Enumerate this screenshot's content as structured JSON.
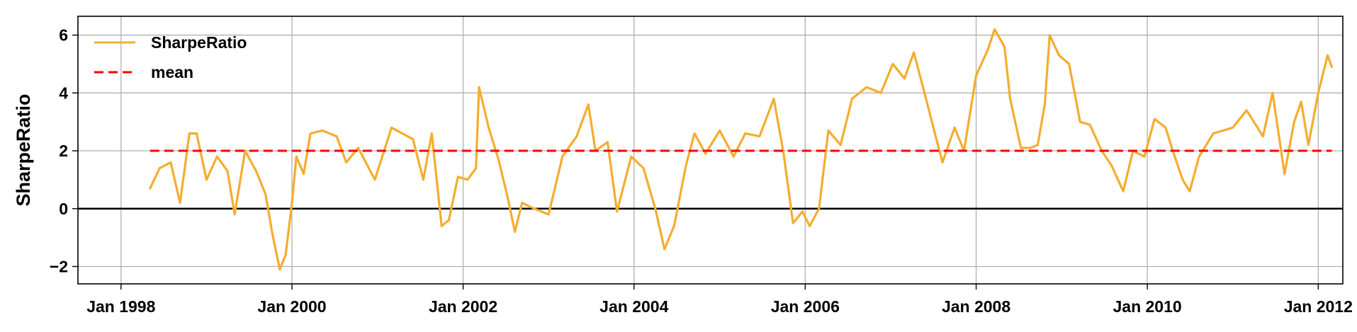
{
  "chart_data": {
    "type": "line",
    "title": "",
    "xlabel": "",
    "ylabel": "SharpeRatio",
    "grid": true,
    "legend_position": "top-left",
    "xlim": [
      "1997-07-01",
      "2012-04-15"
    ],
    "ylim": [
      -2.6,
      6.65
    ],
    "x_ticks": [
      "1998-01-01",
      "2000-01-01",
      "2002-01-01",
      "2004-01-01",
      "2006-01-01",
      "2008-01-01",
      "2010-01-01",
      "2012-01-01"
    ],
    "x_tick_labels": [
      "Jan 1998",
      "Jan 2000",
      "Jan 2002",
      "Jan 2004",
      "Jan 2006",
      "Jan 2008",
      "Jan 2010",
      "Jan 2012"
    ],
    "y_ticks": [
      -2,
      0,
      2,
      4,
      6
    ],
    "y_tick_labels": [
      "−2",
      "0",
      "2",
      "4",
      "6"
    ],
    "zero_line": 0,
    "series": [
      {
        "name": "SharpeRatio",
        "color": "#f4ad2f",
        "style": "solid",
        "points": [
          [
            "1998-05-05",
            0.7
          ],
          [
            "1998-06-15",
            1.4
          ],
          [
            "1998-08-01",
            1.6
          ],
          [
            "1998-09-10",
            0.2
          ],
          [
            "1998-10-20",
            2.6
          ],
          [
            "1998-11-20",
            2.6
          ],
          [
            "1999-01-01",
            1.0
          ],
          [
            "1999-02-15",
            1.8
          ],
          [
            "1999-04-01",
            1.3
          ],
          [
            "1999-05-01",
            -0.2
          ],
          [
            "1999-06-15",
            2.0
          ],
          [
            "1999-08-01",
            1.3
          ],
          [
            "1999-09-10",
            0.5
          ],
          [
            "1999-10-10",
            -0.9
          ],
          [
            "1999-11-10",
            -2.1
          ],
          [
            "1999-12-05",
            -1.6
          ],
          [
            "2000-01-01",
            0.2
          ],
          [
            "2000-01-20",
            1.8
          ],
          [
            "2000-02-20",
            1.2
          ],
          [
            "2000-03-20",
            2.6
          ],
          [
            "2000-05-10",
            2.7
          ],
          [
            "2000-07-10",
            2.5
          ],
          [
            "2000-08-20",
            1.6
          ],
          [
            "2000-10-10",
            2.1
          ],
          [
            "2000-12-20",
            1.0
          ],
          [
            "2001-03-01",
            2.8
          ],
          [
            "2001-06-01",
            2.4
          ],
          [
            "2001-07-15",
            1.0
          ],
          [
            "2001-08-20",
            2.6
          ],
          [
            "2001-10-01",
            -0.6
          ],
          [
            "2001-11-01",
            -0.4
          ],
          [
            "2001-12-10",
            1.1
          ],
          [
            "2002-01-20",
            1.0
          ],
          [
            "2002-02-25",
            1.4
          ],
          [
            "2002-03-10",
            4.2
          ],
          [
            "2002-04-20",
            2.8
          ],
          [
            "2002-06-01",
            1.7
          ],
          [
            "2002-07-10",
            0.4
          ],
          [
            "2002-08-10",
            -0.8
          ],
          [
            "2002-09-10",
            0.2
          ],
          [
            "2002-11-01",
            0.0
          ],
          [
            "2003-01-01",
            -0.2
          ],
          [
            "2003-03-01",
            1.8
          ],
          [
            "2003-05-01",
            2.5
          ],
          [
            "2003-06-20",
            3.6
          ],
          [
            "2003-07-20",
            2.0
          ],
          [
            "2003-09-10",
            2.3
          ],
          [
            "2003-10-20",
            -0.1
          ],
          [
            "2003-12-20",
            1.8
          ],
          [
            "2004-02-10",
            1.4
          ],
          [
            "2004-04-01",
            0.0
          ],
          [
            "2004-05-10",
            -1.4
          ],
          [
            "2004-06-20",
            -0.6
          ],
          [
            "2004-08-10",
            1.5
          ],
          [
            "2004-09-15",
            2.6
          ],
          [
            "2004-11-01",
            1.9
          ],
          [
            "2005-01-01",
            2.7
          ],
          [
            "2005-03-01",
            1.8
          ],
          [
            "2005-04-20",
            2.6
          ],
          [
            "2005-06-20",
            2.5
          ],
          [
            "2005-08-20",
            3.8
          ],
          [
            "2005-10-01",
            1.9
          ],
          [
            "2005-11-10",
            -0.5
          ],
          [
            "2005-12-20",
            -0.1
          ],
          [
            "2006-01-20",
            -0.6
          ],
          [
            "2006-03-01",
            0.0
          ],
          [
            "2006-04-10",
            2.7
          ],
          [
            "2006-06-01",
            2.2
          ],
          [
            "2006-07-20",
            3.8
          ],
          [
            "2006-09-20",
            4.2
          ],
          [
            "2006-11-20",
            4.0
          ],
          [
            "2007-01-10",
            5.0
          ],
          [
            "2007-03-01",
            4.5
          ],
          [
            "2007-04-10",
            5.4
          ],
          [
            "2007-06-01",
            3.8
          ],
          [
            "2007-07-15",
            2.4
          ],
          [
            "2007-08-10",
            1.6
          ],
          [
            "2007-10-01",
            2.8
          ],
          [
            "2007-11-10",
            2.0
          ],
          [
            "2008-01-01",
            4.6
          ],
          [
            "2008-02-20",
            5.5
          ],
          [
            "2008-03-20",
            6.2
          ],
          [
            "2008-05-01",
            5.6
          ],
          [
            "2008-05-25",
            3.8
          ],
          [
            "2008-07-10",
            2.1
          ],
          [
            "2008-08-20",
            2.1
          ],
          [
            "2008-09-20",
            2.2
          ],
          [
            "2008-10-20",
            3.6
          ],
          [
            "2008-11-10",
            6.0
          ],
          [
            "2008-12-20",
            5.3
          ],
          [
            "2009-02-01",
            5.0
          ],
          [
            "2009-03-20",
            3.0
          ],
          [
            "2009-05-01",
            2.9
          ],
          [
            "2009-06-20",
            2.0
          ],
          [
            "2009-08-01",
            1.5
          ],
          [
            "2009-09-20",
            0.6
          ],
          [
            "2009-11-01",
            2.0
          ],
          [
            "2009-12-20",
            1.8
          ],
          [
            "2010-02-01",
            3.1
          ],
          [
            "2010-03-20",
            2.8
          ],
          [
            "2010-04-20",
            2.0
          ],
          [
            "2010-06-01",
            1.0
          ],
          [
            "2010-07-01",
            0.6
          ],
          [
            "2010-08-10",
            1.8
          ],
          [
            "2010-10-10",
            2.6
          ],
          [
            "2011-01-01",
            2.8
          ],
          [
            "2011-03-01",
            3.4
          ],
          [
            "2011-05-10",
            2.5
          ],
          [
            "2011-06-20",
            4.0
          ],
          [
            "2011-08-10",
            1.2
          ],
          [
            "2011-09-20",
            3.0
          ],
          [
            "2011-10-20",
            3.7
          ],
          [
            "2011-11-20",
            2.2
          ],
          [
            "2012-01-01",
            4.0
          ],
          [
            "2012-02-10",
            5.3
          ],
          [
            "2012-02-28",
            4.9
          ]
        ]
      },
      {
        "name": "mean",
        "color": "#ff0000",
        "style": "dashed",
        "points": [
          [
            "1998-05-05",
            2.0
          ],
          [
            "2012-02-28",
            2.0
          ]
        ]
      }
    ]
  }
}
